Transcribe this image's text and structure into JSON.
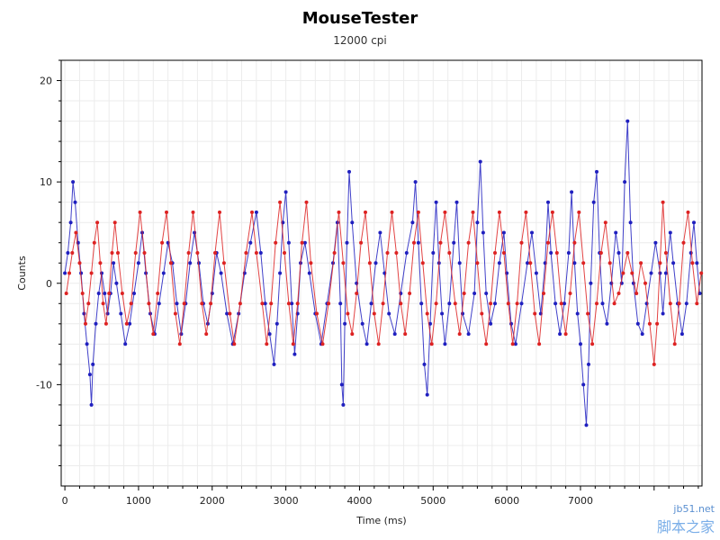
{
  "chart_data": {
    "type": "scatter",
    "title": "MouseTester",
    "subtitle": "12000 cpi",
    "xlabel": "Time (ms)",
    "ylabel": "Counts",
    "xlim": [
      -50,
      8650
    ],
    "ylim": [
      -20,
      22
    ],
    "x_ticks": [
      0,
      1000,
      2000,
      3000,
      4000,
      5000,
      6000,
      7000
    ],
    "y_ticks": [
      -10,
      0,
      10,
      20
    ],
    "grid": true,
    "series": [
      {
        "color": "#1f1fbf",
        "line": true,
        "points": [
          [
            0,
            1
          ],
          [
            40,
            3
          ],
          [
            80,
            6
          ],
          [
            110,
            10
          ],
          [
            140,
            8
          ],
          [
            180,
            4
          ],
          [
            220,
            1
          ],
          [
            260,
            -3
          ],
          [
            300,
            -6
          ],
          [
            340,
            -9
          ],
          [
            360,
            -12
          ],
          [
            380,
            -8
          ],
          [
            420,
            -4
          ],
          [
            460,
            -1
          ],
          [
            500,
            1
          ],
          [
            540,
            -1
          ],
          [
            580,
            -3
          ],
          [
            620,
            -1
          ],
          [
            660,
            2
          ],
          [
            700,
            0
          ],
          [
            760,
            -3
          ],
          [
            820,
            -6
          ],
          [
            880,
            -4
          ],
          [
            940,
            -1
          ],
          [
            1000,
            2
          ],
          [
            1050,
            5
          ],
          [
            1100,
            1
          ],
          [
            1160,
            -3
          ],
          [
            1220,
            -5
          ],
          [
            1280,
            -2
          ],
          [
            1340,
            1
          ],
          [
            1400,
            4
          ],
          [
            1460,
            2
          ],
          [
            1520,
            -2
          ],
          [
            1580,
            -5
          ],
          [
            1640,
            -2
          ],
          [
            1700,
            2
          ],
          [
            1760,
            5
          ],
          [
            1820,
            2
          ],
          [
            1880,
            -2
          ],
          [
            1940,
            -4
          ],
          [
            2000,
            -1
          ],
          [
            2060,
            3
          ],
          [
            2120,
            1
          ],
          [
            2200,
            -3
          ],
          [
            2280,
            -6
          ],
          [
            2360,
            -3
          ],
          [
            2440,
            1
          ],
          [
            2520,
            4
          ],
          [
            2600,
            7
          ],
          [
            2660,
            3
          ],
          [
            2720,
            -2
          ],
          [
            2780,
            -5
          ],
          [
            2840,
            -8
          ],
          [
            2880,
            -4
          ],
          [
            2920,
            1
          ],
          [
            2960,
            6
          ],
          [
            3000,
            9
          ],
          [
            3040,
            4
          ],
          [
            3080,
            -2
          ],
          [
            3120,
            -7
          ],
          [
            3160,
            -3
          ],
          [
            3200,
            2
          ],
          [
            3260,
            4
          ],
          [
            3320,
            1
          ],
          [
            3400,
            -3
          ],
          [
            3480,
            -6
          ],
          [
            3560,
            -2
          ],
          [
            3640,
            2
          ],
          [
            3700,
            6
          ],
          [
            3740,
            -2
          ],
          [
            3760,
            -10
          ],
          [
            3780,
            -12
          ],
          [
            3800,
            -4
          ],
          [
            3830,
            4
          ],
          [
            3860,
            11
          ],
          [
            3900,
            6
          ],
          [
            3960,
            0
          ],
          [
            4040,
            -4
          ],
          [
            4100,
            -6
          ],
          [
            4160,
            -2
          ],
          [
            4220,
            2
          ],
          [
            4280,
            5
          ],
          [
            4340,
            1
          ],
          [
            4400,
            -3
          ],
          [
            4480,
            -5
          ],
          [
            4560,
            -1
          ],
          [
            4640,
            3
          ],
          [
            4720,
            6
          ],
          [
            4760,
            10
          ],
          [
            4800,
            4
          ],
          [
            4840,
            -2
          ],
          [
            4880,
            -8
          ],
          [
            4920,
            -11
          ],
          [
            4960,
            -4
          ],
          [
            5000,
            3
          ],
          [
            5040,
            8
          ],
          [
            5080,
            2
          ],
          [
            5120,
            -3
          ],
          [
            5160,
            -6
          ],
          [
            5220,
            -2
          ],
          [
            5280,
            4
          ],
          [
            5320,
            8
          ],
          [
            5360,
            2
          ],
          [
            5400,
            -3
          ],
          [
            5480,
            -5
          ],
          [
            5560,
            -1
          ],
          [
            5600,
            6
          ],
          [
            5640,
            12
          ],
          [
            5680,
            5
          ],
          [
            5720,
            -1
          ],
          [
            5780,
            -4
          ],
          [
            5840,
            -2
          ],
          [
            5900,
            2
          ],
          [
            5960,
            5
          ],
          [
            6000,
            1
          ],
          [
            6060,
            -4
          ],
          [
            6120,
            -6
          ],
          [
            6200,
            -2
          ],
          [
            6280,
            2
          ],
          [
            6340,
            5
          ],
          [
            6400,
            1
          ],
          [
            6460,
            -3
          ],
          [
            6520,
            2
          ],
          [
            6560,
            8
          ],
          [
            6600,
            3
          ],
          [
            6660,
            -2
          ],
          [
            6720,
            -5
          ],
          [
            6780,
            -2
          ],
          [
            6840,
            3
          ],
          [
            6880,
            9
          ],
          [
            6920,
            2
          ],
          [
            6960,
            -3
          ],
          [
            7000,
            -6
          ],
          [
            7040,
            -10
          ],
          [
            7080,
            -14
          ],
          [
            7110,
            -8
          ],
          [
            7140,
            0
          ],
          [
            7180,
            8
          ],
          [
            7220,
            11
          ],
          [
            7260,
            3
          ],
          [
            7300,
            -2
          ],
          [
            7360,
            -4
          ],
          [
            7420,
            0
          ],
          [
            7480,
            5
          ],
          [
            7520,
            3
          ],
          [
            7560,
            0
          ],
          [
            7600,
            10
          ],
          [
            7640,
            16
          ],
          [
            7680,
            6
          ],
          [
            7720,
            0
          ],
          [
            7780,
            -4
          ],
          [
            7840,
            -5
          ],
          [
            7900,
            -2
          ],
          [
            7960,
            1
          ],
          [
            8020,
            4
          ],
          [
            8080,
            1
          ],
          [
            8120,
            -3
          ],
          [
            8160,
            1
          ],
          [
            8220,
            5
          ],
          [
            8260,
            2
          ],
          [
            8320,
            -2
          ],
          [
            8380,
            -5
          ],
          [
            8440,
            -2
          ],
          [
            8500,
            3
          ],
          [
            8540,
            6
          ],
          [
            8580,
            2
          ],
          [
            8620,
            -1
          ]
        ]
      },
      {
        "color": "#dd2222",
        "line": true,
        "points": [
          [
            20,
            -1
          ],
          [
            60,
            1
          ],
          [
            100,
            3
          ],
          [
            150,
            5
          ],
          [
            200,
            2
          ],
          [
            240,
            -1
          ],
          [
            280,
            -4
          ],
          [
            320,
            -2
          ],
          [
            360,
            1
          ],
          [
            400,
            4
          ],
          [
            440,
            6
          ],
          [
            480,
            2
          ],
          [
            520,
            -2
          ],
          [
            560,
            -4
          ],
          [
            600,
            -1
          ],
          [
            640,
            3
          ],
          [
            680,
            6
          ],
          [
            720,
            3
          ],
          [
            780,
            -1
          ],
          [
            840,
            -4
          ],
          [
            900,
            -2
          ],
          [
            960,
            3
          ],
          [
            1020,
            7
          ],
          [
            1080,
            3
          ],
          [
            1140,
            -2
          ],
          [
            1200,
            -5
          ],
          [
            1260,
            -1
          ],
          [
            1320,
            4
          ],
          [
            1380,
            7
          ],
          [
            1440,
            2
          ],
          [
            1500,
            -3
          ],
          [
            1560,
            -6
          ],
          [
            1620,
            -2
          ],
          [
            1680,
            3
          ],
          [
            1740,
            7
          ],
          [
            1800,
            3
          ],
          [
            1860,
            -2
          ],
          [
            1920,
            -5
          ],
          [
            1980,
            -2
          ],
          [
            2040,
            3
          ],
          [
            2100,
            7
          ],
          [
            2160,
            2
          ],
          [
            2240,
            -3
          ],
          [
            2300,
            -6
          ],
          [
            2380,
            -2
          ],
          [
            2460,
            3
          ],
          [
            2540,
            7
          ],
          [
            2600,
            3
          ],
          [
            2680,
            -2
          ],
          [
            2740,
            -6
          ],
          [
            2800,
            -2
          ],
          [
            2860,
            4
          ],
          [
            2920,
            8
          ],
          [
            2980,
            3
          ],
          [
            3040,
            -2
          ],
          [
            3100,
            -6
          ],
          [
            3160,
            -2
          ],
          [
            3220,
            4
          ],
          [
            3280,
            8
          ],
          [
            3340,
            2
          ],
          [
            3420,
            -3
          ],
          [
            3500,
            -6
          ],
          [
            3580,
            -2
          ],
          [
            3660,
            3
          ],
          [
            3720,
            7
          ],
          [
            3780,
            2
          ],
          [
            3840,
            -3
          ],
          [
            3900,
            -5
          ],
          [
            3960,
            -1
          ],
          [
            4020,
            4
          ],
          [
            4080,
            7
          ],
          [
            4140,
            2
          ],
          [
            4200,
            -3
          ],
          [
            4260,
            -6
          ],
          [
            4320,
            -2
          ],
          [
            4380,
            3
          ],
          [
            4440,
            7
          ],
          [
            4500,
            3
          ],
          [
            4560,
            -2
          ],
          [
            4620,
            -5
          ],
          [
            4680,
            -1
          ],
          [
            4740,
            4
          ],
          [
            4800,
            7
          ],
          [
            4860,
            2
          ],
          [
            4920,
            -3
          ],
          [
            4980,
            -6
          ],
          [
            5040,
            -2
          ],
          [
            5100,
            4
          ],
          [
            5160,
            7
          ],
          [
            5220,
            3
          ],
          [
            5300,
            -2
          ],
          [
            5360,
            -5
          ],
          [
            5420,
            -1
          ],
          [
            5480,
            4
          ],
          [
            5540,
            7
          ],
          [
            5600,
            2
          ],
          [
            5660,
            -3
          ],
          [
            5720,
            -6
          ],
          [
            5780,
            -2
          ],
          [
            5840,
            3
          ],
          [
            5900,
            7
          ],
          [
            5960,
            3
          ],
          [
            6020,
            -2
          ],
          [
            6080,
            -6
          ],
          [
            6140,
            -2
          ],
          [
            6200,
            4
          ],
          [
            6260,
            7
          ],
          [
            6320,
            2
          ],
          [
            6380,
            -3
          ],
          [
            6440,
            -6
          ],
          [
            6500,
            -1
          ],
          [
            6560,
            4
          ],
          [
            6620,
            7
          ],
          [
            6680,
            3
          ],
          [
            6740,
            -2
          ],
          [
            6800,
            -5
          ],
          [
            6860,
            -1
          ],
          [
            6920,
            4
          ],
          [
            6980,
            7
          ],
          [
            7040,
            2
          ],
          [
            7100,
            -3
          ],
          [
            7160,
            -6
          ],
          [
            7220,
            -2
          ],
          [
            7280,
            3
          ],
          [
            7340,
            6
          ],
          [
            7400,
            2
          ],
          [
            7460,
            -2
          ],
          [
            7520,
            -1
          ],
          [
            7580,
            1
          ],
          [
            7640,
            3
          ],
          [
            7700,
            1
          ],
          [
            7760,
            -1
          ],
          [
            7820,
            2
          ],
          [
            7880,
            0
          ],
          [
            7940,
            -4
          ],
          [
            8000,
            -8
          ],
          [
            8040,
            -4
          ],
          [
            8080,
            2
          ],
          [
            8120,
            8
          ],
          [
            8160,
            3
          ],
          [
            8220,
            -2
          ],
          [
            8280,
            -6
          ],
          [
            8340,
            -2
          ],
          [
            8400,
            4
          ],
          [
            8460,
            7
          ],
          [
            8520,
            2
          ],
          [
            8580,
            -2
          ],
          [
            8640,
            1
          ]
        ]
      }
    ]
  },
  "watermark": {
    "top": "jb51.net",
    "bottom": "脚本之家"
  }
}
